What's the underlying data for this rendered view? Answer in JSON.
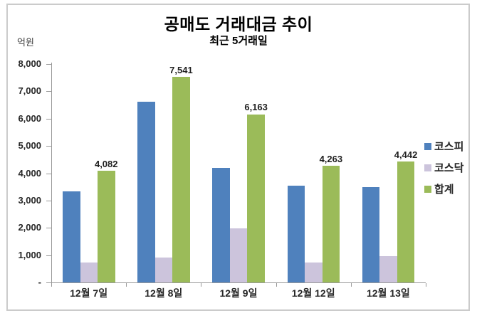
{
  "chart_data": {
    "type": "bar",
    "title": "공매도 거래대금 추이",
    "subtitle": "최근 5거래일",
    "unit_label": "억원",
    "categories": [
      "12월 7일",
      "12월 8일",
      "12월 9일",
      "12월 12일",
      "12월 13일"
    ],
    "series": [
      {
        "key": "kospi",
        "name": "코스피",
        "color": "#4f81bd",
        "values": [
          3340,
          6630,
          4190,
          3540,
          3480
        ]
      },
      {
        "key": "kosdaq",
        "name": "코스닥",
        "color": "#ccc4dc",
        "values": [
          742,
          911,
          1973,
          723,
          962
        ]
      },
      {
        "key": "total",
        "name": "합계",
        "color": "#9bbb59",
        "values": [
          4082,
          7541,
          6163,
          4263,
          4442
        ],
        "data_labels": [
          "4,082",
          "7,541",
          "6,163",
          "4,263",
          "4,442"
        ]
      }
    ],
    "ylim": [
      0,
      8000
    ],
    "ytick_interval": 1000,
    "ytick_labels": [
      "-",
      "1,000",
      "2,000",
      "3,000",
      "4,000",
      "5,000",
      "6,000",
      "7,000",
      "8,000"
    ],
    "legend_position": "right",
    "grid": false
  }
}
